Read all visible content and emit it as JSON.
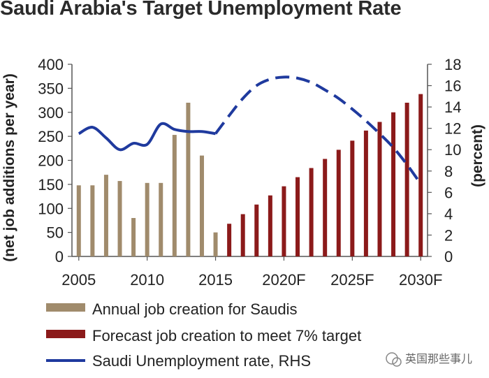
{
  "title": "Saudi Arabia's Target Unemployment Rate",
  "watermark": "英国那些事儿",
  "colors": {
    "actual_bar": "#a08b6c",
    "forecast_bar": "#8b1a1a",
    "unemployment_line": "#1f3a9e"
  },
  "chart_data": {
    "type": "bar",
    "title": "Saudi Arabia's Target Unemployment Rate",
    "ylabel": "(net job additions per year)",
    "y2label": "(percent)",
    "ylim": [
      0,
      400
    ],
    "y2lim": [
      0,
      18
    ],
    "yticks": [
      "400",
      "350",
      "300",
      "250",
      "200",
      "150",
      "100",
      "50",
      "0"
    ],
    "y2ticks": [
      "18",
      "16",
      "14",
      "12",
      "10",
      "8",
      "6",
      "4",
      "2",
      "0"
    ],
    "xticks": [
      "2005",
      "2010",
      "2015",
      "2020F",
      "2025F",
      "2030F"
    ],
    "legend_position": "bottom",
    "series": [
      {
        "name": "Annual job creation for Saudis",
        "type": "bar",
        "axis": "left",
        "x": [
          2005,
          2006,
          2007,
          2008,
          2009,
          2010,
          2011,
          2012,
          2013,
          2014,
          2015
        ],
        "values": [
          148,
          148,
          170,
          157,
          80,
          153,
          153,
          253,
          320,
          210,
          50
        ]
      },
      {
        "name": "Forecast job creation to meet 7% target",
        "type": "bar",
        "axis": "left",
        "x": [
          2016,
          2017,
          2018,
          2019,
          2020,
          2021,
          2022,
          2023,
          2024,
          2025,
          2026,
          2027,
          2028,
          2029,
          2030
        ],
        "values": [
          68,
          88,
          108,
          127,
          146,
          165,
          184,
          203,
          222,
          241,
          262,
          280,
          300,
          320,
          338
        ]
      },
      {
        "name": "Saudi Unemployment rate, RHS",
        "type": "line",
        "axis": "right",
        "x": [
          2005,
          2006,
          2007,
          2008,
          2009,
          2010,
          2011,
          2012,
          2013,
          2014,
          2015
        ],
        "values": [
          11.5,
          12.1,
          11.1,
          10.0,
          10.6,
          10.5,
          12.4,
          11.9,
          11.7,
          11.7,
          11.5
        ]
      },
      {
        "name": "Saudi Unemployment rate, RHS",
        "type": "line-dashed",
        "axis": "right",
        "x": [
          2015,
          2016,
          2017,
          2018,
          2019,
          2020,
          2021,
          2022,
          2023,
          2024,
          2025,
          2026,
          2027,
          2028,
          2029,
          2030
        ],
        "values": [
          11.5,
          13.2,
          14.8,
          16.0,
          16.6,
          16.8,
          16.7,
          16.3,
          15.6,
          14.8,
          13.8,
          12.7,
          11.5,
          10.2,
          8.6,
          6.8
        ]
      }
    ]
  }
}
